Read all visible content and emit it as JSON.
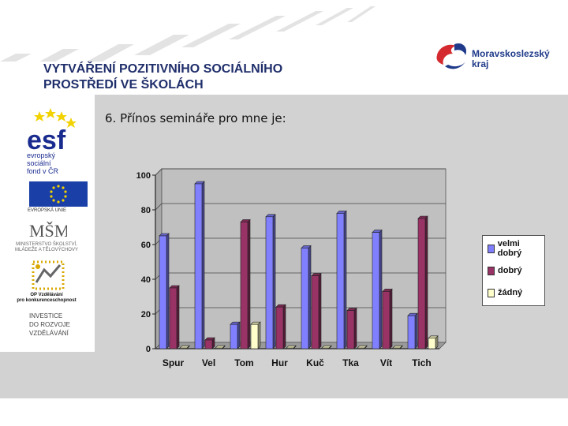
{
  "header": {
    "title_line1": "VYTVÁŘENÍ POZITIVNÍHO SOCIÁLNÍHO",
    "title_line2": "PROSTŘEDÍ VE ŠKOLÁCH",
    "title_color": "#1f2e6b"
  },
  "region_logo": {
    "name_line1": "Moravskoslezský",
    "name_line2": "kraj",
    "icon": "moravian-silesian-region-logo"
  },
  "sidebar_logos": {
    "esf_mark": "esf",
    "esf_line1": "evropský",
    "esf_line2": "sociální",
    "esf_line3": "fond v ČR",
    "eu_label": "EVROPSKÁ UNIE",
    "msmt_mark": "MŠMT",
    "msmt_line1": "MINISTERSTVO ŠKOLSTVÍ,",
    "msmt_line2": "MLÁDEŽE A TĚLOVÝCHOVY",
    "op_line1": "OP Vzdělávání",
    "op_line2": "pro konkurenceschopnost",
    "invest_line1": "INVESTICE",
    "invest_line2": "DO ROZVOJE",
    "invest_line3": "VZDĚLÁVÁNÍ"
  },
  "slide": {
    "title": "6. Přínos semináře pro mne je:"
  },
  "chart_data": {
    "type": "bar",
    "categories": [
      "Spur",
      "Vel",
      "Tom",
      "Hur",
      "Kuč",
      "Tka",
      "Vít",
      "Tich"
    ],
    "series": [
      {
        "name": "velmi dobrý",
        "color": "#8080ff",
        "values": [
          65,
          95,
          14,
          76,
          58,
          78,
          67,
          19
        ]
      },
      {
        "name": "dobrý",
        "color": "#993366",
        "values": [
          35,
          5,
          73,
          24,
          42,
          22,
          33,
          75
        ]
      },
      {
        "name": "žádný",
        "color": "#ffffcc",
        "values": [
          0,
          0,
          14,
          0,
          0,
          0,
          0,
          6
        ]
      }
    ],
    "ylim": [
      0,
      100
    ],
    "yticks": [
      "0",
      "20",
      "40",
      "60",
      "80",
      "100"
    ],
    "ytick_values": [
      0,
      20,
      40,
      60,
      80,
      100
    ],
    "grid": true,
    "legend": "right",
    "plot_bg": "#c0c0c0"
  }
}
